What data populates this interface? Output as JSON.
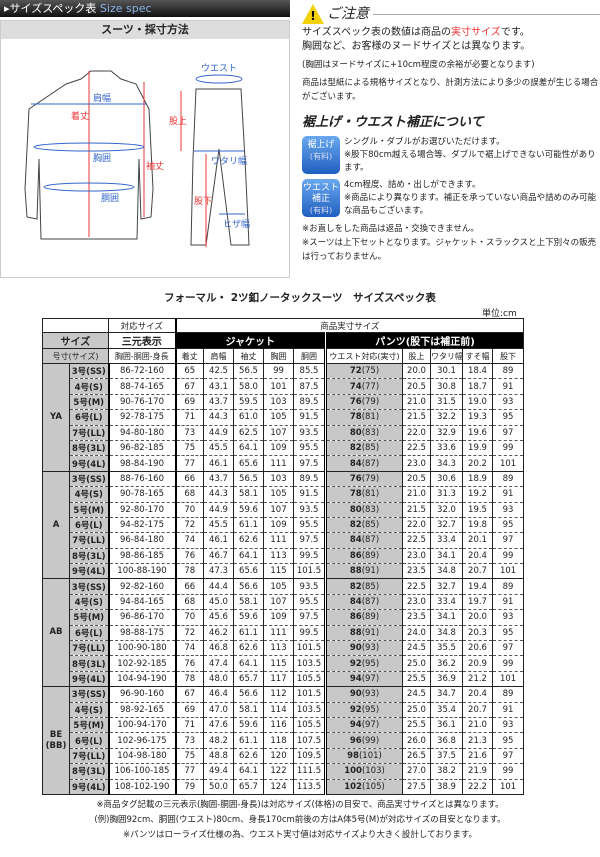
{
  "header": {
    "title_jp": "▸サイズスペック表",
    "title_en": "Size spec"
  },
  "diagram": {
    "title": "スーツ・採寸方法",
    "labels": {
      "shoulder": "肩幅",
      "length": "着丈",
      "chest": "胸囲",
      "waist_body": "胴囲",
      "sleeve": "袖丈",
      "waist": "ウエスト",
      "rise": "股上",
      "thigh": "ワタリ幅",
      "inseam": "股下",
      "knee": "ヒザ幅"
    }
  },
  "notes": {
    "caution_icon": "warning-icon",
    "caution_title": "ご注意",
    "p1a": "サイズスペック表の数値は商品の",
    "p1b": "実寸サイズ",
    "p1c": "です。",
    "p2": "胸囲など、お客様のヌードサイズとは異なります。",
    "p3": "(胸囲はヌードサイズに+10cm程度の余裕が必要となります)",
    "p4": "商品は型紙による規格サイズとなり、計測方法により多少の誤差が生じる場合がございます。",
    "subtitle": "裾上げ・ウエスト補正について",
    "hem": {
      "badge": "裾上げ",
      "paid": "(有料)",
      "l1": "シングル・ダブルがお選びいただけます。",
      "l2": "※股下80cm越える場合等、ダブルで裾上げできない可能性があります。"
    },
    "waist": {
      "badge": "ウエスト補正",
      "paid": "(有料)",
      "l1": "4cm程度、詰め・出しができます。",
      "l2": "※商品により異なります。補正を承っていない商品や詰めのみ可能な商品もございます。"
    },
    "n1": "※お直しをした商品は返品・交換できません。",
    "n2": "※スーツは上下セットとなります。ジャケット・スラックスと上下別々の販売は行っておりません。"
  },
  "table": {
    "title": "フォーマル・ 2ツ釦ノータックスーツ　サイズスペック表",
    "unit": "単位:cm",
    "h_corresponding": "対応サイズ",
    "h_actual": "商品実寸サイズ",
    "h_size": "サイズ",
    "h_sangen": "三元表示",
    "h_jacket": "ジャケット",
    "h_pants": "パンツ(股下は補正前)",
    "h_gosun": "号寸(サイズ)",
    "cols": [
      "胸囲-胴囲-身長",
      "着丈",
      "肩幅",
      "袖丈",
      "胸囲",
      "胴囲",
      "ウエスト対応(実寸)",
      "股上",
      "ワタリ幅",
      "すそ幅",
      "股下"
    ],
    "groups": [
      {
        "name": "YA",
        "rows": [
          [
            "3号(SS)",
            "86-72-160",
            "65",
            "42.5",
            "56.5",
            "99",
            "85.5",
            "72",
            "(75)",
            "20.0",
            "30.1",
            "18.4",
            "89"
          ],
          [
            "4号(S)",
            "88-74-165",
            "67",
            "43.1",
            "58.0",
            "101",
            "87.5",
            "74",
            "(77)",
            "20.5",
            "30.8",
            "18.7",
            "91"
          ],
          [
            "5号(M)",
            "90-76-170",
            "69",
            "43.7",
            "59.5",
            "103",
            "89.5",
            "76",
            "(79)",
            "21.0",
            "31.5",
            "19.0",
            "93"
          ],
          [
            "6号(L)",
            "92-78-175",
            "71",
            "44.3",
            "61.0",
            "105",
            "91.5",
            "78",
            "(81)",
            "21.5",
            "32.2",
            "19.3",
            "95"
          ],
          [
            "7号(LL)",
            "94-80-180",
            "73",
            "44.9",
            "62.5",
            "107",
            "93.5",
            "80",
            "(83)",
            "22.0",
            "32.9",
            "19.6",
            "97"
          ],
          [
            "8号(3L)",
            "96-82-185",
            "75",
            "45.5",
            "64.1",
            "109",
            "95.5",
            "82",
            "(85)",
            "22.5",
            "33.6",
            "19.9",
            "99"
          ],
          [
            "9号(4L)",
            "98-84-190",
            "77",
            "46.1",
            "65.6",
            "111",
            "97.5",
            "84",
            "(87)",
            "23.0",
            "34.3",
            "20.2",
            "101"
          ]
        ]
      },
      {
        "name": "A",
        "rows": [
          [
            "3号(SS)",
            "88-76-160",
            "66",
            "43.7",
            "56.5",
            "103",
            "89.5",
            "76",
            "(79)",
            "20.5",
            "30.6",
            "18.9",
            "89"
          ],
          [
            "4号(S)",
            "90-78-165",
            "68",
            "44.3",
            "58.1",
            "105",
            "91.5",
            "78",
            "(81)",
            "21.0",
            "31.3",
            "19.2",
            "91"
          ],
          [
            "5号(M)",
            "92-80-170",
            "70",
            "44.9",
            "59.6",
            "107",
            "93.5",
            "80",
            "(83)",
            "21.5",
            "32.0",
            "19.5",
            "93"
          ],
          [
            "6号(L)",
            "94-82-175",
            "72",
            "45.5",
            "61.1",
            "109",
            "95.5",
            "82",
            "(85)",
            "22.0",
            "32.7",
            "19.8",
            "95"
          ],
          [
            "7号(LL)",
            "96-84-180",
            "74",
            "46.1",
            "62.6",
            "111",
            "97.5",
            "84",
            "(87)",
            "22.5",
            "33.4",
            "20.1",
            "97"
          ],
          [
            "8号(3L)",
            "98-86-185",
            "76",
            "46.7",
            "64.1",
            "113",
            "99.5",
            "86",
            "(89)",
            "23.0",
            "34.1",
            "20.4",
            "99"
          ],
          [
            "9号(4L)",
            "100-88-190",
            "78",
            "47.3",
            "65.6",
            "115",
            "101.5",
            "88",
            "(91)",
            "23.5",
            "34.8",
            "20.7",
            "101"
          ]
        ]
      },
      {
        "name": "AB",
        "rows": [
          [
            "3号(SS)",
            "92-82-160",
            "66",
            "44.4",
            "56.6",
            "105",
            "93.5",
            "82",
            "(85)",
            "22.5",
            "32.7",
            "19.4",
            "89"
          ],
          [
            "4号(S)",
            "94-84-165",
            "68",
            "45.0",
            "58.1",
            "107",
            "95.5",
            "84",
            "(87)",
            "23.0",
            "33.4",
            "19.7",
            "91"
          ],
          [
            "5号(M)",
            "96-86-170",
            "70",
            "45.6",
            "59.6",
            "109",
            "97.5",
            "86",
            "(89)",
            "23.5",
            "34.1",
            "20.0",
            "93"
          ],
          [
            "6号(L)",
            "98-88-175",
            "72",
            "46.2",
            "61.1",
            "111",
            "99.5",
            "88",
            "(91)",
            "24.0",
            "34.8",
            "20.3",
            "95"
          ],
          [
            "7号(LL)",
            "100-90-180",
            "74",
            "46.8",
            "62.6",
            "113",
            "101.5",
            "90",
            "(93)",
            "24.5",
            "35.5",
            "20.6",
            "97"
          ],
          [
            "8号(3L)",
            "102-92-185",
            "76",
            "47.4",
            "64.1",
            "115",
            "103.5",
            "92",
            "(95)",
            "25.0",
            "36.2",
            "20.9",
            "99"
          ],
          [
            "9号(4L)",
            "104-94-190",
            "78",
            "48.0",
            "65.7",
            "117",
            "105.5",
            "94",
            "(97)",
            "25.5",
            "36.9",
            "21.2",
            "101"
          ]
        ]
      },
      {
        "name": "BE\n(BB)",
        "rows": [
          [
            "3号(SS)",
            "96-90-160",
            "67",
            "46.4",
            "56.6",
            "112",
            "101.5",
            "90",
            "(93)",
            "24.5",
            "34.7",
            "20.4",
            "89"
          ],
          [
            "4号(S)",
            "98-92-165",
            "69",
            "47.0",
            "58.1",
            "114",
            "103.5",
            "92",
            "(95)",
            "25.0",
            "35.4",
            "20.7",
            "91"
          ],
          [
            "5号(M)",
            "100-94-170",
            "71",
            "47.6",
            "59.6",
            "116",
            "105.5",
            "94",
            "(97)",
            "25.5",
            "36.1",
            "21.0",
            "93"
          ],
          [
            "6号(L)",
            "102-96-175",
            "73",
            "48.2",
            "61.1",
            "118",
            "107.5",
            "96",
            "(99)",
            "26.0",
            "36.8",
            "21.3",
            "95"
          ],
          [
            "7号(LL)",
            "104-98-180",
            "75",
            "48.8",
            "62.6",
            "120",
            "109.5",
            "98",
            "(101)",
            "26.5",
            "37.5",
            "21.6",
            "97"
          ],
          [
            "8号(3L)",
            "106-100-185",
            "77",
            "49.4",
            "64.1",
            "122",
            "111.5",
            "100",
            "(103)",
            "27.0",
            "38.2",
            "21.9",
            "99"
          ],
          [
            "9号(4L)",
            "108-102-190",
            "79",
            "50.0",
            "65.7",
            "124",
            "113.5",
            "102",
            "(105)",
            "27.5",
            "38.9",
            "22.2",
            "101"
          ]
        ]
      }
    ]
  },
  "footer": {
    "f1": "※商品タグ記載の三元表示(胸囲-胴囲-身長)は対応サイズ(体格)の目安で、商品実寸サイズとは異なります。",
    "f2": "(例)胸囲92cm、胴囲(ウエスト)80cm、身長170cm前後の方はA体5号(M)が対応サイズの目安となります。",
    "f3": "※パンツはローライズ仕様の為、ウエスト実寸値は対応サイズより大きく設計しております。"
  }
}
